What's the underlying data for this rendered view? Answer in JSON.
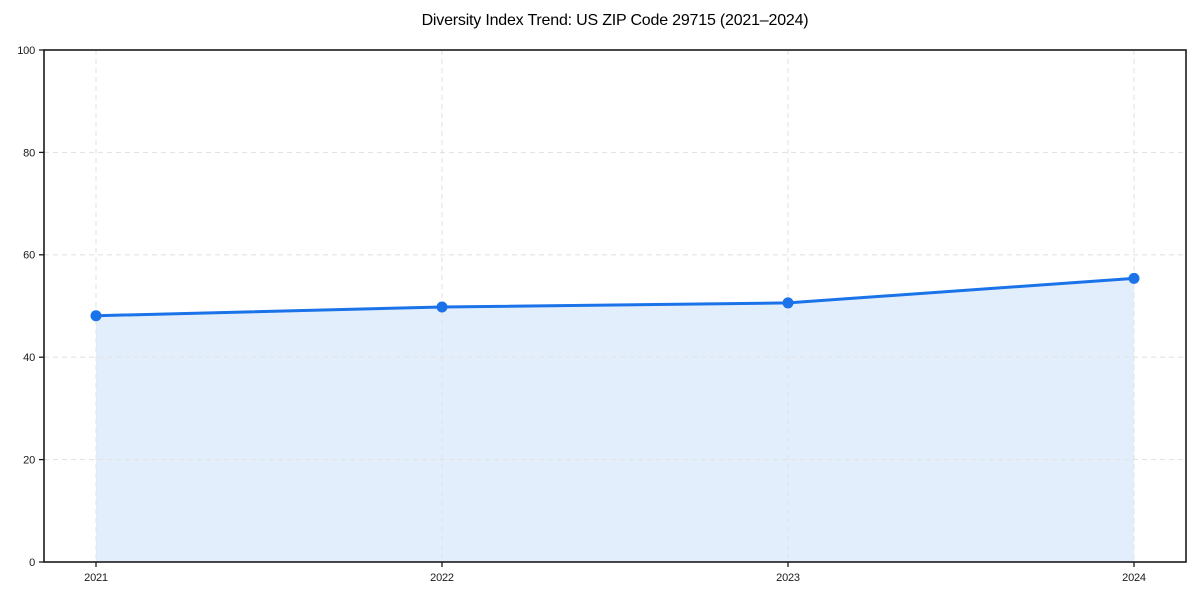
{
  "title": "Diversity Index Trend: US ZIP Code 29715 (2021–2024)",
  "chart_data": {
    "type": "area",
    "title": "Diversity Index Trend: US ZIP Code 29715 (2021–2024)",
    "series_name": "Diversity Index",
    "categories": [
      "2021",
      "2022",
      "2023",
      "2024"
    ],
    "values": [
      48.1,
      49.8,
      50.6,
      55.4
    ],
    "xlabel": "",
    "ylabel": "",
    "ylim": [
      0,
      100
    ],
    "yticks": [
      0,
      20,
      40,
      60,
      80,
      100
    ],
    "grid": true,
    "grid_style": "dashed",
    "legend_position": "none",
    "colors": {
      "line": "#1a73e8",
      "marker": "#1a73e8",
      "fill": "rgba(26,115,232,0.12)",
      "grid": "#e3e3e3",
      "spine": "#1a1a1a",
      "tick_label": "#1a1a1a",
      "title": "#000000",
      "background": "#ffffff"
    }
  }
}
